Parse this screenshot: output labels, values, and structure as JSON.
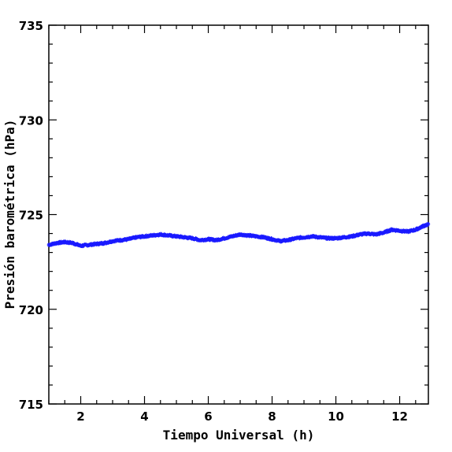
{
  "chart_data": {
    "type": "scatter",
    "title": "",
    "xlabel": "Tiempo Universal (h)",
    "ylabel": "Presión barométrica (hPa)",
    "xlim": [
      1.0,
      12.9
    ],
    "ylim": [
      715,
      735
    ],
    "x_ticks": [
      2,
      4,
      6,
      8,
      10,
      12
    ],
    "y_ticks": [
      715,
      720,
      725,
      730,
      735
    ],
    "x_tick_labels": [
      "2",
      "4",
      "6",
      "8",
      "10",
      "12"
    ],
    "y_tick_labels": [
      "715",
      "720",
      "725",
      "730",
      "735"
    ],
    "grid": false,
    "marker": "asterisk",
    "series": [
      {
        "color": "#1a1aff",
        "x": [
          1.0,
          1.25,
          1.5,
          1.75,
          2.0,
          2.25,
          2.5,
          2.75,
          3.0,
          3.25,
          3.5,
          3.75,
          4.0,
          4.25,
          4.5,
          4.75,
          5.0,
          5.25,
          5.5,
          5.75,
          6.0,
          6.25,
          6.5,
          6.75,
          7.0,
          7.25,
          7.5,
          7.75,
          8.0,
          8.25,
          8.5,
          8.75,
          9.0,
          9.25,
          9.5,
          9.75,
          10.0,
          10.25,
          10.5,
          10.75,
          11.0,
          11.25,
          11.5,
          11.75,
          12.0,
          12.25,
          12.5,
          12.75,
          12.9
        ],
        "y": [
          723.4,
          723.5,
          723.55,
          723.5,
          723.35,
          723.4,
          723.45,
          723.5,
          723.6,
          723.65,
          723.7,
          723.8,
          723.85,
          723.9,
          723.95,
          723.9,
          723.85,
          723.8,
          723.75,
          723.65,
          723.7,
          723.65,
          723.75,
          723.85,
          723.95,
          723.9,
          723.85,
          723.8,
          723.7,
          723.6,
          723.65,
          723.75,
          723.8,
          723.85,
          723.8,
          723.75,
          723.75,
          723.8,
          723.85,
          723.95,
          724.0,
          723.95,
          724.05,
          724.2,
          724.15,
          724.1,
          724.2,
          724.4,
          724.5
        ]
      }
    ]
  }
}
